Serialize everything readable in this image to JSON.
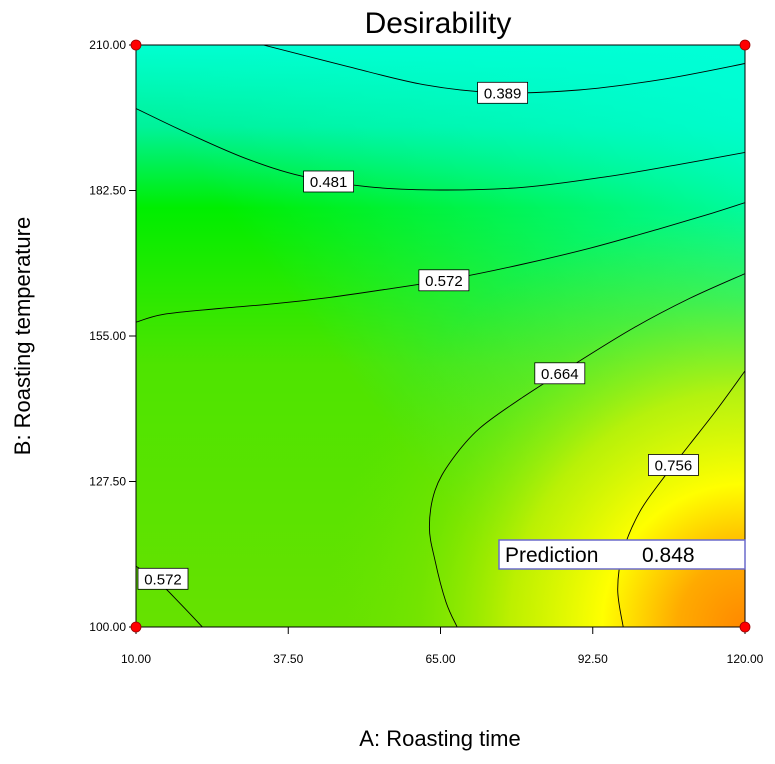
{
  "chart_data": {
    "type": "heatmap",
    "title": "Desirability",
    "xlabel": "A: Roasting time",
    "ylabel": "B: Roasting temperature",
    "xlim": [
      10,
      120
    ],
    "ylim": [
      100,
      210
    ],
    "x_ticks": [
      "10.00",
      "37.50",
      "65.00",
      "92.50",
      "120.00"
    ],
    "y_ticks": [
      "100.00",
      "127.50",
      "155.00",
      "182.50",
      "210.00"
    ],
    "grid": false,
    "legend": "none",
    "colormap": [
      "#00ffd0",
      "#00ee00",
      "#5fe800",
      "#c8f000",
      "#ffff00",
      "#ff8c00"
    ],
    "contours": [
      {
        "level": 0.389,
        "label": "0.389",
        "points": [
          [
            33,
            210
          ],
          [
            48,
            206
          ],
          [
            62,
            202.5
          ],
          [
            75,
            201
          ],
          [
            90,
            201.5
          ],
          [
            105,
            203.5
          ],
          [
            120,
            206.5
          ]
        ]
      },
      {
        "level": 0.481,
        "label": "0.481",
        "points": [
          [
            10,
            198
          ],
          [
            20,
            193
          ],
          [
            30,
            188.5
          ],
          [
            40,
            185.2
          ],
          [
            52,
            183.2
          ],
          [
            65,
            182.6
          ],
          [
            80,
            183.1
          ],
          [
            95,
            185.1
          ],
          [
            108,
            187.4
          ],
          [
            120,
            189.7
          ]
        ]
      },
      {
        "level": 0.572,
        "label": "0.572",
        "points": [
          [
            10,
            157.6
          ],
          [
            15,
            159.1
          ],
          [
            25,
            160.2
          ],
          [
            35,
            161.1
          ],
          [
            45,
            162.3
          ],
          [
            55,
            163.8
          ],
          [
            67,
            165.8
          ],
          [
            80,
            168.6
          ],
          [
            92,
            171.6
          ],
          [
            104,
            175.1
          ],
          [
            114,
            178.2
          ],
          [
            120,
            180.2
          ]
        ]
      },
      {
        "level": 0.572,
        "label": "0.572",
        "points": [
          [
            10,
            111.5
          ],
          [
            14,
            108.6
          ],
          [
            18,
            104.4
          ],
          [
            22,
            100
          ]
        ]
      },
      {
        "level": 0.664,
        "label": "0.664",
        "points": [
          [
            68,
            100
          ],
          [
            66,
            104.7
          ],
          [
            64,
            112.6
          ],
          [
            63,
            118.9
          ],
          [
            64,
            125.8
          ],
          [
            67,
            131.5
          ],
          [
            72,
            137.5
          ],
          [
            80,
            143.5
          ],
          [
            90,
            150.2
          ],
          [
            100,
            156.6
          ],
          [
            110,
            162.1
          ],
          [
            120,
            166.8
          ]
        ]
      },
      {
        "level": 0.756,
        "label": "0.756",
        "points": [
          [
            98,
            100
          ],
          [
            97,
            107.1
          ],
          [
            98,
            114.4
          ],
          [
            101,
            121.8
          ],
          [
            105,
            127.8
          ],
          [
            110,
            134.5
          ],
          [
            115,
            141.2
          ],
          [
            120,
            148.4
          ]
        ]
      }
    ],
    "prediction": {
      "label": "Prediction",
      "value": "0.848",
      "x": 120,
      "y": 100
    },
    "design_points": [
      [
        10,
        210
      ],
      [
        120,
        210
      ],
      [
        10,
        100
      ],
      [
        120,
        100
      ]
    ]
  }
}
